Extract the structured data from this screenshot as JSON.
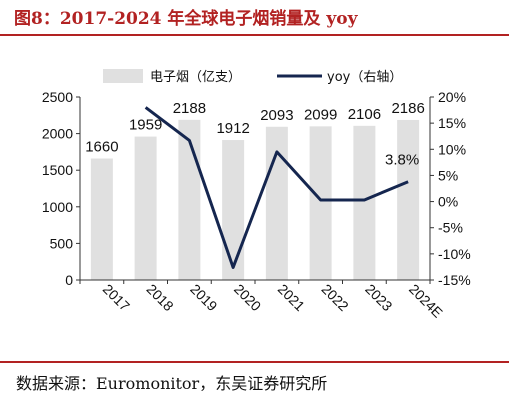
{
  "header": {
    "title": "图8：2017-2024 年全球电子烟销量及 yoy"
  },
  "footer": {
    "source": "数据来源：Euromonitor，东吴证券研究所"
  },
  "chart_data": {
    "type": "bar",
    "title": "",
    "categories": [
      "2017",
      "2018",
      "2019",
      "2020",
      "2021",
      "2022",
      "2023",
      "2024E"
    ],
    "series": [
      {
        "name": "电子烟（亿支）",
        "type": "bar",
        "axis": "left",
        "values": [
          1660,
          1959,
          2188,
          1912,
          2093,
          2099,
          2106,
          2186
        ],
        "color": "#e0e0e0"
      },
      {
        "name": "yoy（右轴）",
        "type": "line",
        "axis": "right",
        "values": [
          null,
          18.0,
          11.7,
          -12.6,
          9.5,
          0.3,
          0.3,
          3.8
        ],
        "color": "#15264f"
      }
    ],
    "data_labels": [
      "1660",
      "1959",
      "2188",
      "1912",
      "2093",
      "2099",
      "2106",
      "2186"
    ],
    "line_label": "3.8%",
    "y_left": {
      "min": 0,
      "max": 2500,
      "ticks": [
        "0",
        "500",
        "1000",
        "1500",
        "2000",
        "2500"
      ]
    },
    "y_right": {
      "min": -15,
      "max": 20,
      "ticks": [
        "-15%",
        "-10%",
        "-5%",
        "0%",
        "5%",
        "10%",
        "15%",
        "20%"
      ]
    },
    "legend": [
      "电子烟（亿支）",
      "yoy（右轴）"
    ],
    "legend_position": "top",
    "grid": false,
    "xlabel": "",
    "ylabel": ""
  }
}
